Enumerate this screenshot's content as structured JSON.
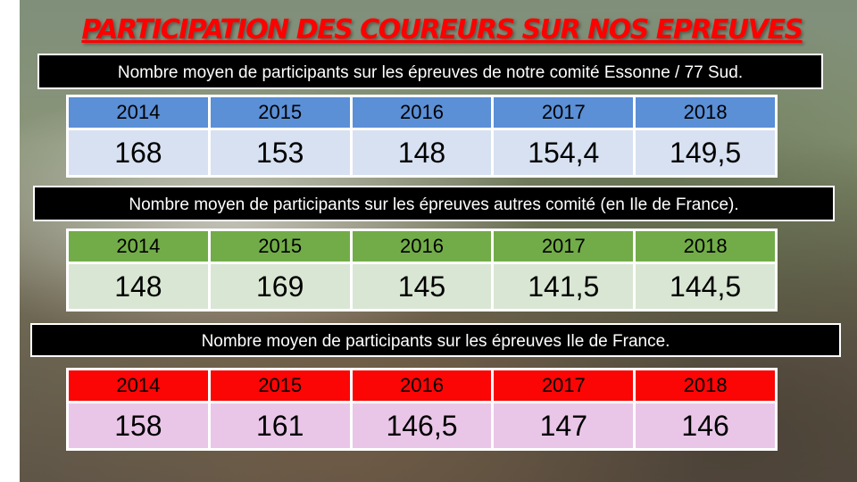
{
  "title": "PARTICIPATION DES COUREURS SUR NOS EPREUVES",
  "sections": [
    {
      "caption": "Nombre moyen de participants sur les épreuves de notre comité Essonne / 77 Sud.",
      "years": [
        "2014",
        "2015",
        "2016",
        "2017",
        "2018"
      ],
      "values": [
        "168",
        "153",
        "148",
        "154,4",
        "149,5"
      ]
    },
    {
      "caption": "Nombre moyen de participants sur les épreuves autres comité (en Ile de France).",
      "years": [
        "2014",
        "2015",
        "2016",
        "2017",
        "2018"
      ],
      "values": [
        "148",
        "169",
        "145",
        "141,5",
        "144,5"
      ]
    },
    {
      "caption": "Nombre moyen de participants sur les épreuves Ile de France.",
      "years": [
        "2014",
        "2015",
        "2016",
        "2017",
        "2018"
      ],
      "values": [
        "158",
        "161",
        "146,5",
        "147",
        "146"
      ]
    }
  ],
  "colors": {
    "title": "#ff0000",
    "table1_header": "#5b8fd6",
    "table1_values": "#d7e1f1",
    "table2_header": "#72ac48",
    "table2_values": "#d9e6d3",
    "table3_header": "#fb0505",
    "table3_values": "#e9c6e8"
  }
}
